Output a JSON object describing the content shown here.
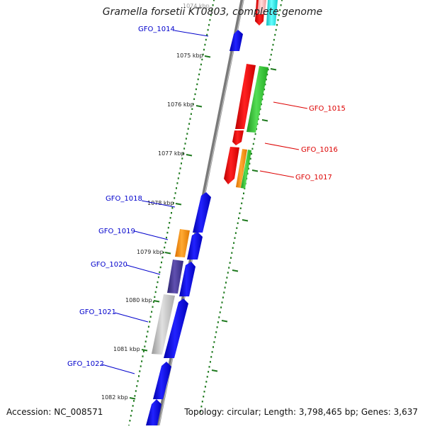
{
  "title": "Gramella forsetii KT0803, complete genome",
  "accession_text": "Accession: NC_008571",
  "summary_text": "Topology: circular; Length: 3,798,465 bp; Genes: 3,637",
  "scale_labels": [
    "1074 kbp",
    "1075 kbp",
    "1076 kbp",
    "1077 kbp",
    "1078 kbp",
    "1079 kbp",
    "1080 kbp",
    "1081 kbp",
    "1082 kbp"
  ],
  "genes": [
    {
      "name": "GFO_1014",
      "color": "#0000cc"
    },
    {
      "name": "GFO_1015",
      "color": "#dd0000"
    },
    {
      "name": "GFO_1016",
      "color": "#dd0000"
    },
    {
      "name": "GFO_1017",
      "color": "#dd0000"
    },
    {
      "name": "GFO_1018",
      "color": "#0000cc"
    },
    {
      "name": "GFO_1019",
      "color": "#0000cc"
    },
    {
      "name": "GFO_1020",
      "color": "#0000cc"
    },
    {
      "name": "GFO_1021",
      "color": "#0000cc"
    },
    {
      "name": "GFO_1022",
      "color": "#0000cc"
    }
  ],
  "colors": {
    "backbone": "#7a7a7a",
    "tick": "#1f7a1f",
    "forward_gene": "#0000ee",
    "reverse_gene": "#ee0000",
    "cog_green": "#33bb33",
    "cog_orange": "#ff8800",
    "cog_purple": "#4a3a90",
    "cog_gray": "#b8b8b8",
    "cog_cyan": "#22dddd",
    "cog_pink": "#ffaaaa"
  }
}
